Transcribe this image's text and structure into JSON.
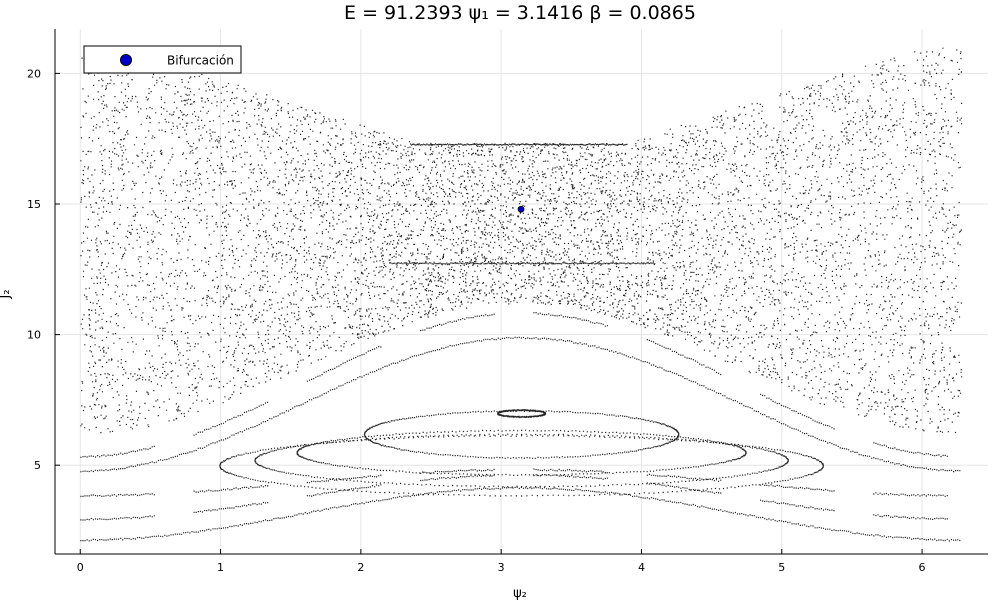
{
  "chart_data": {
    "type": "scatter",
    "title": "E = 91.2393  ψ₁ = 3.1416  β = 0.0865",
    "xlabel": "ψ₂",
    "ylabel": "J₂",
    "xlim": [
      -0.18,
      6.47
    ],
    "ylim": [
      1.6,
      21.7
    ],
    "xticks": [
      0,
      1,
      2,
      3,
      4,
      5,
      6
    ],
    "yticks": [
      5,
      10,
      15,
      20
    ],
    "grid": true,
    "legend_position": "top-left",
    "series": [
      {
        "name": "Bifurcación",
        "marker": "circle",
        "color": "#0000cc",
        "points": [
          {
            "x": 3.1416,
            "y": 14.8
          }
        ]
      }
    ],
    "background_points": {
      "color": "#000000",
      "description_layers": {
        "chaotic_sea": "dense scattered points between the separatrix and the upper boundary",
        "invariant_curves": [
          {
            "J0": 2.15,
            "A": -2.0,
            "dash": false
          },
          {
            "J0": 2.95,
            "A": -1.7,
            "dash": true
          },
          {
            "J0": 3.85,
            "A": -1.0,
            "dash": true
          },
          {
            "J0": 4.8,
            "A": -5.1,
            "dash": false
          },
          {
            "J0": 5.35,
            "A": -5.5,
            "dash": true
          }
        ],
        "islands": [
          {
            "cx": 3.1416,
            "cy": 5.0,
            "a": 2.15,
            "b": 1.15,
            "twist": 0.0
          },
          {
            "cx": 3.1416,
            "cy": 5.2,
            "a": 1.9,
            "b": 1.0,
            "twist": 0.0
          },
          {
            "cx": 3.1416,
            "cy": 5.5,
            "a": 1.6,
            "b": 0.85,
            "twist": 0.0
          },
          {
            "cx": 3.1416,
            "cy": 6.2,
            "a": 1.12,
            "b": 0.9,
            "twist": 0.0
          },
          {
            "cx": 3.1416,
            "cy": 7.0,
            "a": 0.17,
            "b": 0.13,
            "twist": 0.0
          }
        ],
        "resonance_lines": [
          {
            "x0": 2.35,
            "x1": 3.9,
            "y": 17.3
          },
          {
            "x0": 2.2,
            "x1": 4.1,
            "y": 12.75
          }
        ]
      }
    }
  }
}
